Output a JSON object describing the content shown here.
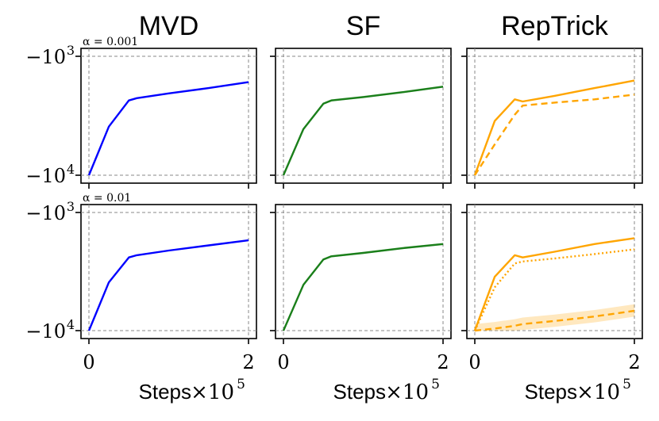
{
  "chart_data": {
    "type": "line",
    "layout": "grid 2x3",
    "columns": [
      "MVD",
      "SF",
      "RepTrick"
    ],
    "rows": [
      {
        "label": "α = 0.001"
      },
      {
        "label": "α = 0.01"
      }
    ],
    "x": [
      0,
      0.25,
      0.5,
      0.6,
      1.0,
      1.5,
      2.0
    ],
    "xlabel": "Steps",
    "x_multiplier": "×10",
    "x_multiplier_exp": "5",
    "xlim": [
      0,
      2
    ],
    "x_ticks": [
      "0",
      "2"
    ],
    "y_scale": "log (negative values)",
    "ylim": [
      -10000,
      -1000
    ],
    "y_ticks": [
      {
        "base": "−10",
        "exp": "3",
        "value": -1000
      },
      {
        "base": "−10",
        "exp": "4",
        "value": -10000
      }
    ],
    "reference_lines": [
      -1000,
      -10000
    ],
    "panels": [
      {
        "row": 0,
        "col": 0,
        "series": [
          {
            "name": "MVD",
            "color": "#0000ff",
            "style": "solid",
            "values": [
              -10000,
              -3900,
              -2350,
              -2250,
              -2050,
              -1850,
              -1650
            ]
          }
        ]
      },
      {
        "row": 0,
        "col": 1,
        "series": [
          {
            "name": "SF",
            "color": "#1a7f1a",
            "style": "solid",
            "band": true,
            "values": [
              -10000,
              -4100,
              -2500,
              -2350,
              -2200,
              -2000,
              -1800
            ]
          }
        ]
      },
      {
        "row": 0,
        "col": 2,
        "series": [
          {
            "name": "RepTrick solid",
            "color": "#ffa500",
            "style": "solid",
            "values": [
              -10000,
              -3500,
              -2300,
              -2400,
              -2150,
              -1850,
              -1600
            ]
          },
          {
            "name": "RepTrick dashed",
            "color": "#ffa500",
            "style": "dashed",
            "values": [
              -10000,
              -5500,
              -3100,
              -2600,
              -2450,
              -2300,
              -2100
            ]
          }
        ]
      },
      {
        "row": 1,
        "col": 0,
        "series": [
          {
            "name": "MVD",
            "color": "#0000ff",
            "style": "solid",
            "values": [
              -10000,
              -3900,
              -2400,
              -2300,
              -2100,
              -1900,
              -1720
            ]
          }
        ]
      },
      {
        "row": 1,
        "col": 1,
        "series": [
          {
            "name": "SF",
            "color": "#1a7f1a",
            "style": "solid",
            "band": true,
            "values": [
              -10000,
              -4100,
              -2500,
              -2350,
              -2200,
              -2000,
              -1850
            ]
          }
        ]
      },
      {
        "row": 1,
        "col": 2,
        "series": [
          {
            "name": "RepTrick solid",
            "color": "#ffa500",
            "style": "solid",
            "values": [
              -10000,
              -3500,
              -2300,
              -2400,
              -2150,
              -1850,
              -1650
            ]
          },
          {
            "name": "RepTrick dotted",
            "color": "#ffa500",
            "style": "dotted",
            "values": [
              -10000,
              -4300,
              -2700,
              -2600,
              -2450,
              -2250,
              -2050
            ]
          },
          {
            "name": "RepTrick dashed",
            "color": "#ffa500",
            "style": "dashed",
            "band": true,
            "band_width": 0.12,
            "values": [
              -10000,
              -9600,
              -9100,
              -8800,
              -8300,
              -7600,
              -6800
            ]
          }
        ]
      }
    ]
  }
}
